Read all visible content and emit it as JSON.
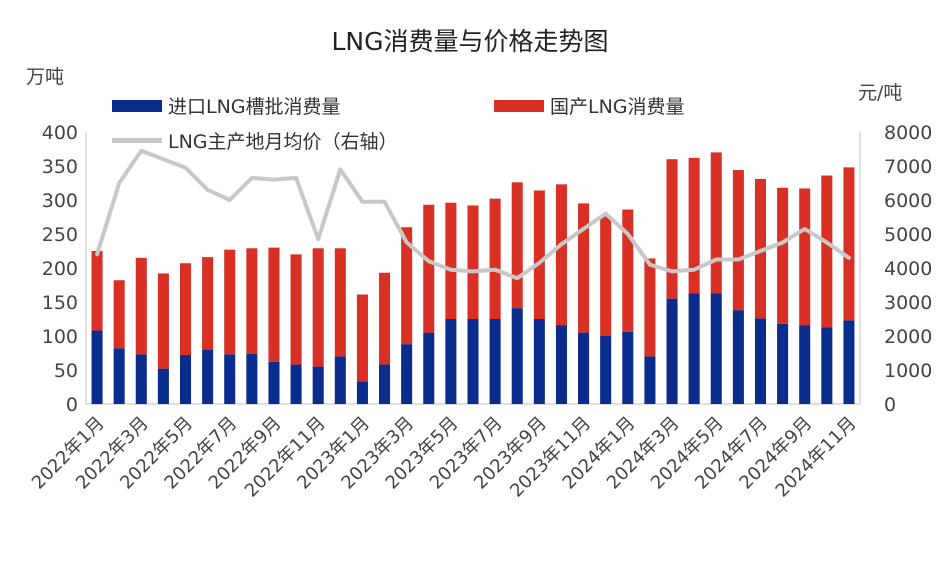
{
  "chart_data": {
    "type": "bar",
    "title": "LNG消费量与价格走势图",
    "y_left_unit": "万吨",
    "y_right_unit": "元/吨",
    "ylim_left": [
      0,
      400
    ],
    "ylim_right": [
      0,
      8000
    ],
    "left_ticks": [
      "0",
      "50",
      "100",
      "150",
      "200",
      "250",
      "300",
      "350",
      "400"
    ],
    "right_ticks": [
      "0",
      "1000",
      "2000",
      "3000",
      "4000",
      "5000",
      "6000",
      "7000",
      "8000"
    ],
    "grid": false,
    "legend_position": "top",
    "categories": [
      "2022年1月",
      "2022年2月",
      "2022年3月",
      "2022年4月",
      "2022年5月",
      "2022年6月",
      "2022年7月",
      "2022年8月",
      "2022年9月",
      "2022年10月",
      "2022年11月",
      "2022年12月",
      "2023年1月",
      "2023年2月",
      "2023年3月",
      "2023年4月",
      "2023年5月",
      "2023年6月",
      "2023年7月",
      "2023年8月",
      "2023年9月",
      "2023年10月",
      "2023年11月",
      "2023年12月",
      "2024年1月",
      "2024年2月",
      "2024年3月",
      "2024年4月",
      "2024年5月",
      "2024年6月",
      "2024年7月",
      "2024年8月",
      "2024年9月",
      "2024年10月",
      "2024年11月"
    ],
    "x_tick_labels": [
      "2022年1月",
      "2022年3月",
      "2022年5月",
      "2022年7月",
      "2022年9月",
      "2022年11月",
      "2023年1月",
      "2023年3月",
      "2023年5月",
      "2023年7月",
      "2023年9月",
      "2023年11月",
      "2024年1月",
      "2024年3月",
      "2024年5月",
      "2024年7月",
      "2024年9月",
      "2024年11月"
    ],
    "series": [
      {
        "name": "进口LNG槽批消费量",
        "type": "bar",
        "stack": "total",
        "axis": "left",
        "color": "#0a2c8c",
        "values": [
          108,
          82,
          73,
          52,
          72,
          80,
          73,
          74,
          62,
          58,
          55,
          70,
          33,
          58,
          88,
          105,
          125,
          125,
          125,
          141,
          125,
          116,
          105,
          100,
          106,
          70,
          155,
          163,
          163,
          138,
          126,
          118,
          116,
          113,
          123
        ]
      },
      {
        "name": "国产LNG消费量",
        "type": "bar",
        "stack": "total",
        "axis": "left",
        "color": "#d93025",
        "values": [
          117,
          100,
          142,
          140,
          135,
          136,
          154,
          155,
          168,
          162,
          174,
          159,
          128,
          135,
          172,
          188,
          171,
          167,
          177,
          185,
          189,
          207,
          190,
          176,
          180,
          144,
          205,
          199,
          207,
          206,
          205,
          200,
          201,
          223,
          225
        ]
      },
      {
        "name": "LNG主产地月均价（右轴）",
        "type": "line",
        "axis": "right",
        "color": "#c8c8c8",
        "values": [
          4400,
          6500,
          7450,
          7200,
          6950,
          6300,
          6000,
          6650,
          6600,
          6650,
          4850,
          6900,
          5950,
          5950,
          4750,
          4200,
          3950,
          3900,
          3950,
          3700,
          4150,
          4700,
          5150,
          5600,
          5000,
          4100,
          3900,
          3950,
          4250,
          4250,
          4500,
          4750,
          5150,
          4750,
          4300
        ]
      }
    ]
  }
}
